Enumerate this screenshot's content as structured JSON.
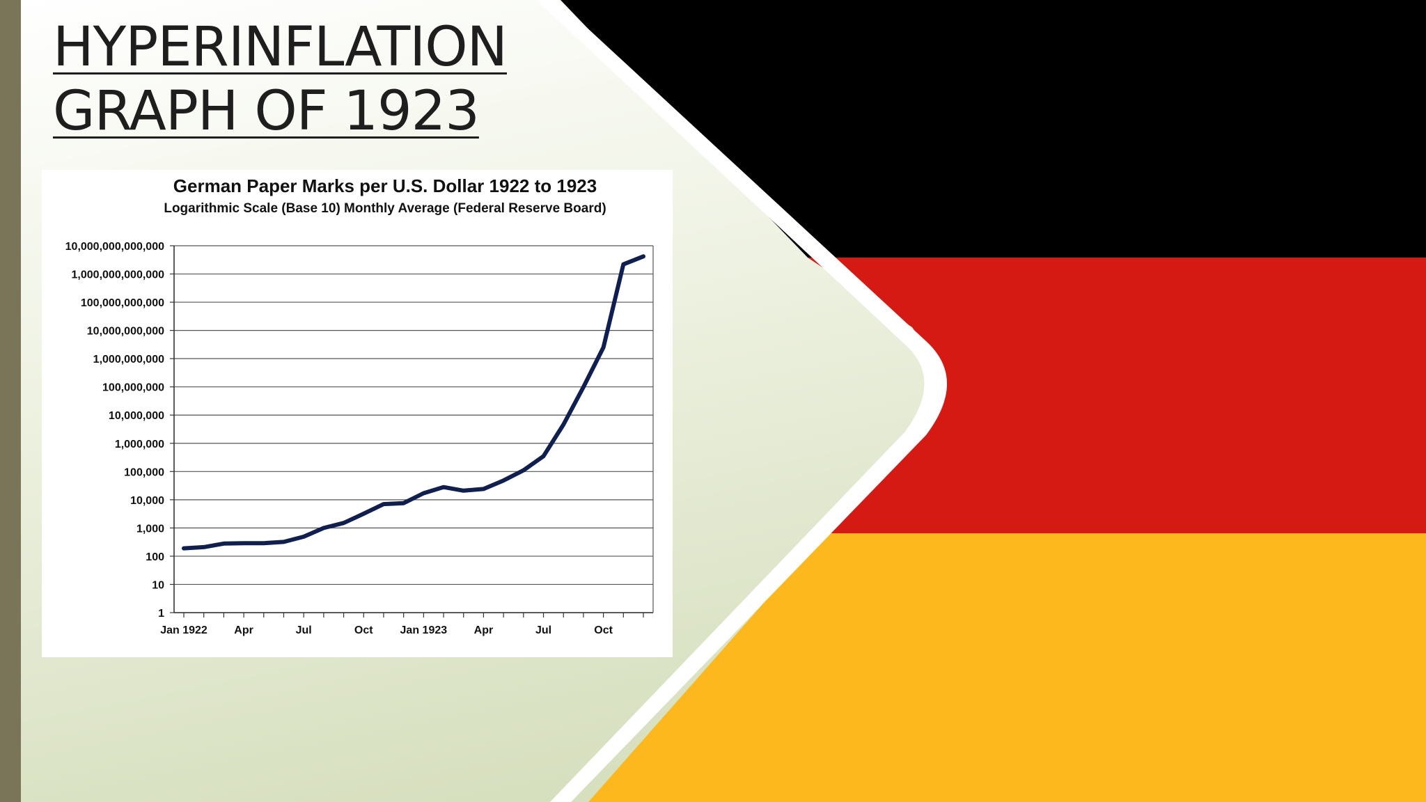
{
  "slide": {
    "title_line1": "HYPERINFLATION",
    "title_line2": "GRAPH OF 1923",
    "colors": {
      "left_bar": "#7a7458",
      "background_light": "#f4f6ee",
      "background_green": "#dbe4c6",
      "flag_black": "#000000",
      "flag_red": "#d41a12",
      "flag_gold": "#fdb81e",
      "stripe_white": "#ffffff",
      "chart_line": "#0f1f4f"
    }
  },
  "chart_data": {
    "type": "line",
    "title": "German Paper Marks per U.S. Dollar 1922 to 1923",
    "subtitle": "Logarithmic Scale (Base 10) Monthly Average (Federal Reserve Board)",
    "xlabel": "",
    "ylabel": "",
    "y_scale": "log10",
    "ylim": [
      1,
      10000000000000
    ],
    "grid": true,
    "x_tick_labels": [
      "Jan 1922",
      "Apr",
      "Jul",
      "Oct",
      "Jan 1923",
      "Apr",
      "Jul",
      "Oct"
    ],
    "y_tick_labels": [
      "1",
      "10",
      "100",
      "1,000",
      "10,000",
      "100,000",
      "1,000,000",
      "10,000,000",
      "100,000,000",
      "1,000,000,000",
      "10,000,000,000",
      "100,000,000,000",
      "1,000,000,000,000",
      "10,000,000,000,000"
    ],
    "y_tick_values": [
      1,
      10,
      100,
      1000,
      10000,
      100000,
      1000000,
      10000000,
      100000000,
      1000000000,
      10000000000,
      100000000000,
      1000000000000,
      10000000000000
    ],
    "x": [
      "Jan 1922",
      "Feb 1922",
      "Mar 1922",
      "Apr 1922",
      "May 1922",
      "Jun 1922",
      "Jul 1922",
      "Aug 1922",
      "Sep 1922",
      "Oct 1922",
      "Nov 1922",
      "Dec 1922",
      "Jan 1923",
      "Feb 1923",
      "Mar 1923",
      "Apr 1923",
      "May 1923",
      "Jun 1923",
      "Jul 1923",
      "Aug 1923",
      "Sep 1923",
      "Oct 1923",
      "Nov 1923",
      "Dec 1923"
    ],
    "series": [
      {
        "values": [
          190,
          210,
          280,
          290,
          290,
          320,
          490,
          1000,
          1500,
          3200,
          7000,
          7600,
          17000,
          28000,
          21000,
          24000,
          48000,
          110000,
          350000,
          4600000,
          98000000,
          2500000000,
          2200000000000,
          4200000000000
        ]
      }
    ]
  }
}
